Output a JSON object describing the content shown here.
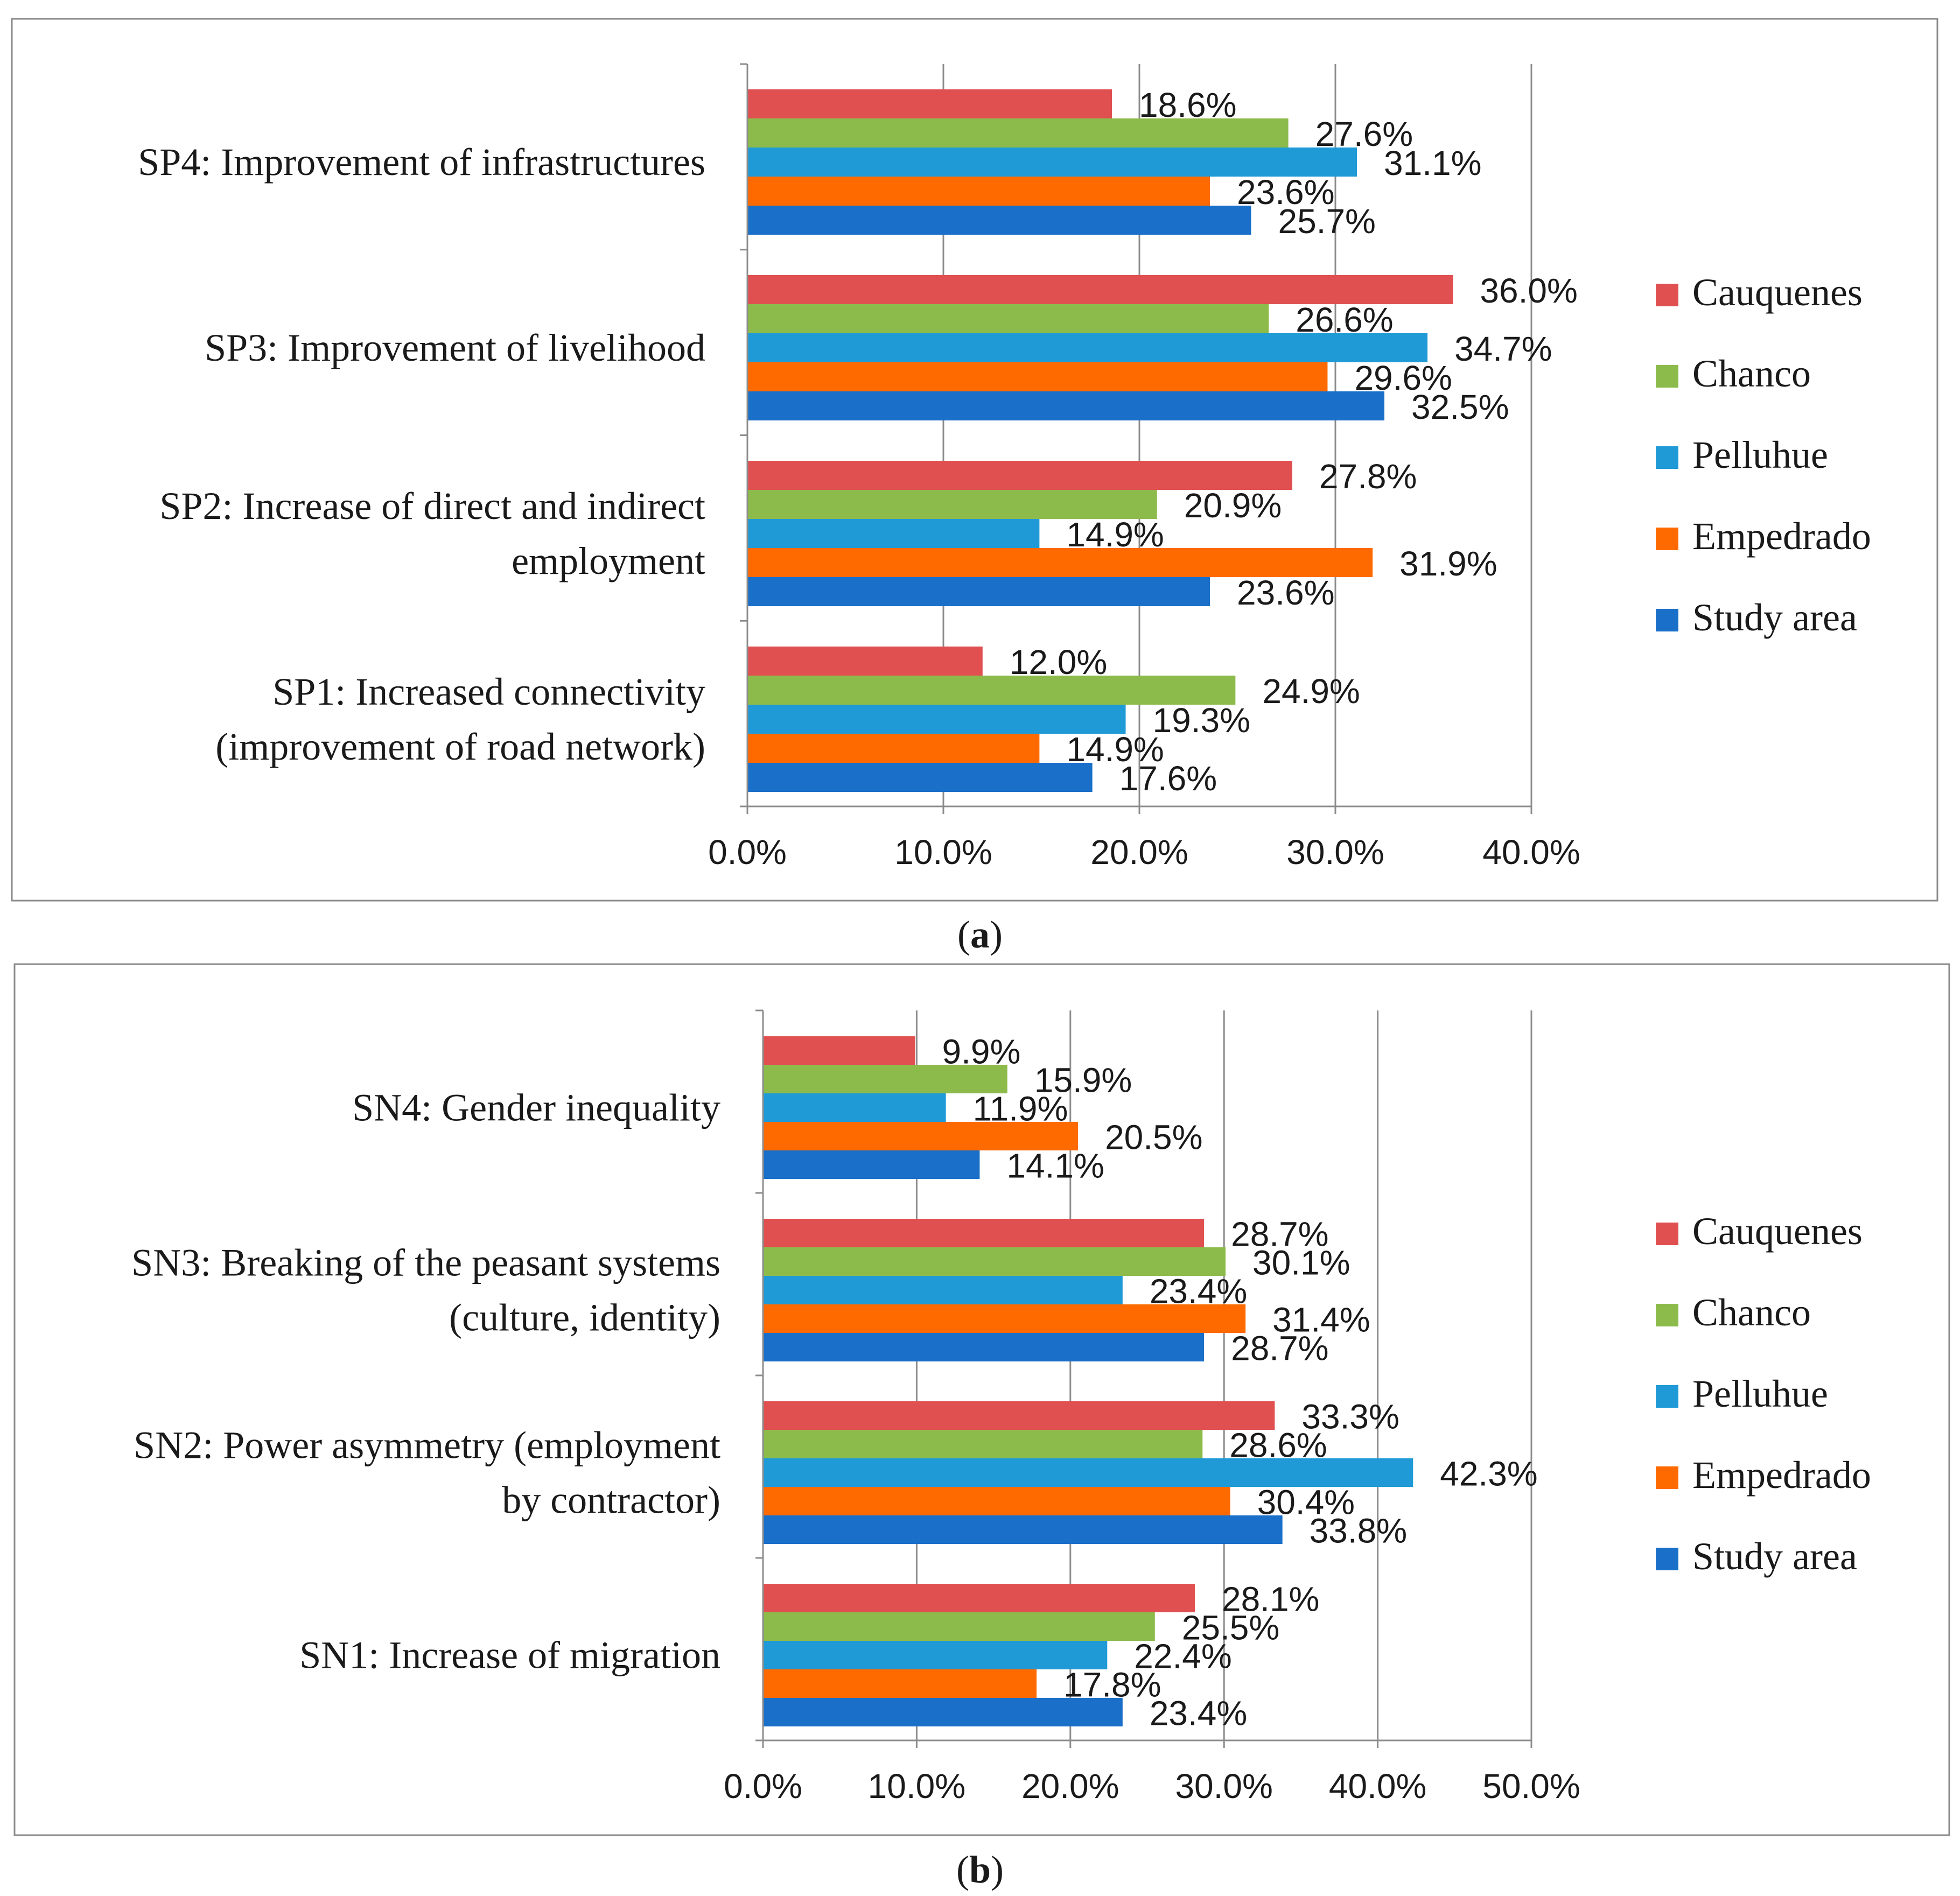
{
  "chart_data": [
    {
      "type": "bar",
      "orientation": "horizontal",
      "panel_label": "a",
      "categories": [
        "SP4:  Improvement of infrastructures",
        "SP3: Improvement of livelihood",
        "SP2: Increase of direct and indirect employment",
        "SP1: Increased connectivity (improvement of road network)"
      ],
      "category_lines": [
        [
          "SP4:  Improvement of infrastructures"
        ],
        [
          "SP3: Improvement of livelihood"
        ],
        [
          "SP2: Increase of direct and indirect",
          "employment"
        ],
        [
          "SP1: Increased connectivity",
          "(improvement of road network)"
        ]
      ],
      "series": [
        {
          "name": "Cauquenes",
          "color": "#e05050",
          "values": [
            18.6,
            36.0,
            27.8,
            12.0
          ],
          "labels": [
            "18.6%",
            "36.0%",
            "27.8%",
            "12.0%"
          ]
        },
        {
          "name": "Chanco",
          "color": "#8dbb4b",
          "values": [
            27.6,
            26.6,
            20.9,
            24.9
          ],
          "labels": [
            "27.6%",
            "26.6%",
            "20.9%",
            "24.9%"
          ]
        },
        {
          "name": "Pelluhue",
          "color": "#1f9ad6",
          "values": [
            31.1,
            34.7,
            14.9,
            19.3
          ],
          "labels": [
            "31.1%",
            "34.7%",
            "14.9%",
            "19.3%"
          ]
        },
        {
          "name": "Empedrado",
          "color": "#ff6a00",
          "values": [
            23.6,
            29.6,
            31.9,
            14.9
          ],
          "labels": [
            "23.6%",
            "29.6%",
            "31.9%",
            "14.9%"
          ]
        },
        {
          "name": "Study area",
          "color": "#1a6fc9",
          "values": [
            25.7,
            32.5,
            23.6,
            17.6
          ],
          "labels": [
            "25.7%",
            "32.5%",
            "23.6%",
            "17.6%"
          ]
        }
      ],
      "xlim": [
        0,
        40
      ],
      "xticks": [
        0,
        10,
        20,
        30,
        40
      ],
      "xtick_labels": [
        "0.0%",
        "10.0%",
        "20.0%",
        "30.0%",
        "40.0%"
      ],
      "legend": "right",
      "grid": true,
      "caption": "(a)"
    },
    {
      "type": "bar",
      "orientation": "horizontal",
      "panel_label": "b",
      "categories": [
        "SN4: Gender inequality",
        "SN3: Breaking of the peasant systems (culture, identity)",
        "SN2: Power asymmetry (employment by contractor)",
        "SN1: Increase of migration"
      ],
      "category_lines": [
        [
          "SN4: Gender inequality"
        ],
        [
          "SN3: Breaking of the peasant systems",
          "(culture, identity)"
        ],
        [
          "SN2: Power asymmetry (employment",
          "by contractor)"
        ],
        [
          "SN1: Increase of migration"
        ]
      ],
      "series": [
        {
          "name": "Cauquenes",
          "color": "#e05050",
          "values": [
            9.9,
            28.7,
            33.3,
            28.1
          ],
          "labels": [
            "9.9%",
            "28.7%",
            "33.3%",
            "28.1%"
          ]
        },
        {
          "name": "Chanco",
          "color": "#8dbb4b",
          "values": [
            15.9,
            30.1,
            28.6,
            25.5
          ],
          "labels": [
            "15.9%",
            "30.1%",
            "28.6%",
            "25.5%"
          ]
        },
        {
          "name": "Pelluhue",
          "color": "#1f9ad6",
          "values": [
            11.9,
            23.4,
            42.3,
            22.4
          ],
          "labels": [
            "11.9%",
            "23.4%",
            "42.3%",
            "22.4%"
          ]
        },
        {
          "name": "Empedrado",
          "color": "#ff6a00",
          "values": [
            20.5,
            31.4,
            30.4,
            17.8
          ],
          "labels": [
            "20.5%",
            "31.4%",
            "30.4%",
            "17.8%"
          ]
        },
        {
          "name": "Study area",
          "color": "#1a6fc9",
          "values": [
            14.1,
            28.7,
            33.8,
            23.4
          ],
          "labels": [
            "14.1%",
            "28.7%",
            "33.8%",
            "23.4%"
          ]
        }
      ],
      "xlim": [
        0,
        50
      ],
      "xticks": [
        0,
        10,
        20,
        30,
        40,
        50
      ],
      "xtick_labels": [
        "0.0%",
        "10.0%",
        "20.0%",
        "30.0%",
        "40.0%",
        "50.0%"
      ],
      "legend": "right",
      "grid": true,
      "caption": "(b)"
    }
  ]
}
